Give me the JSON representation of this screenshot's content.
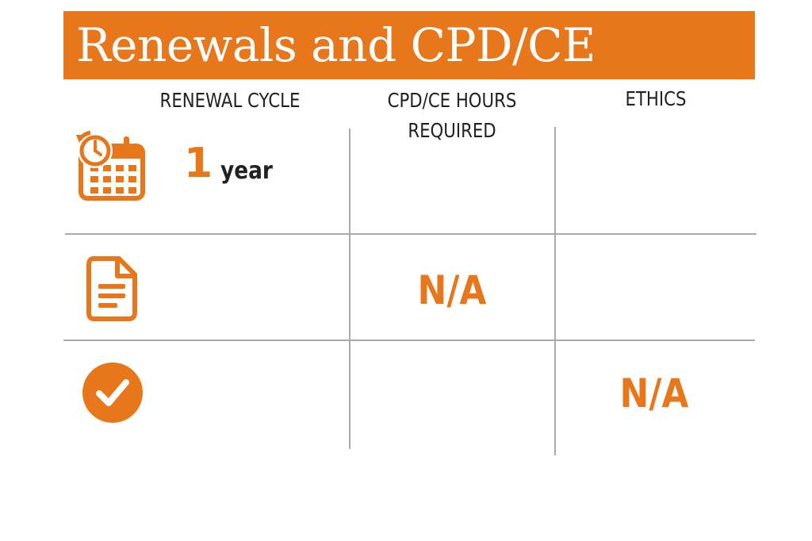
{
  "title": "Renewals and CPD/CE",
  "columns": {
    "renewal_cycle": "RENEWAL CYCLE",
    "cpd_hours_line1": "CPD/CE HOURS",
    "cpd_hours_line2": "REQUIRED",
    "ethics": "ETHICS"
  },
  "renewal": {
    "value": "1",
    "unit": "year"
  },
  "cpd_hours_required": "N/A",
  "ethics_required": "N/A",
  "colors": {
    "accent": "#e8761b",
    "text": "#222222",
    "grid": "#aaaaaa"
  },
  "icons": [
    "calendar-clock-icon",
    "document-icon",
    "checkmark-circle-icon"
  ]
}
